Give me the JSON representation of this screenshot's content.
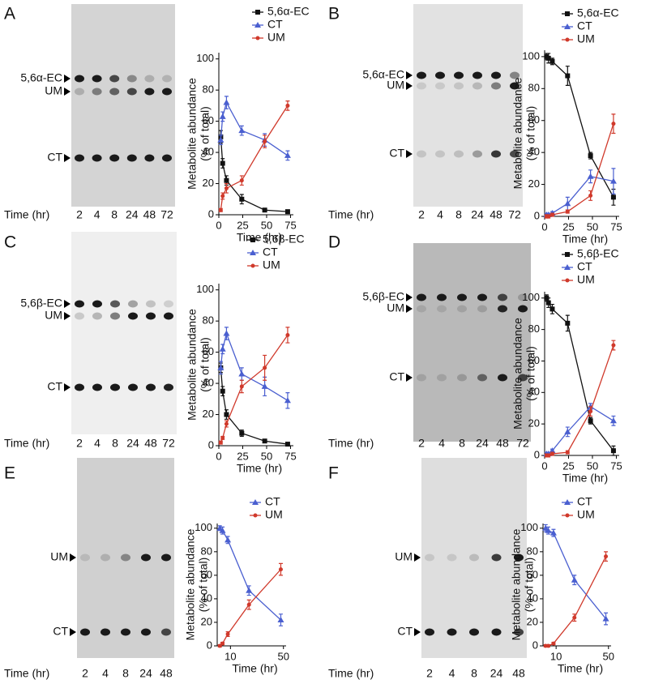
{
  "chart_data": [
    {
      "type": "line",
      "panel": "A",
      "gel": {
        "bands": [
          "5,6α-EC",
          "UM",
          "CT"
        ],
        "time_label": "Time (hr)"
      },
      "ylabel": [
        "Metabolite abundance",
        "(% of total)"
      ],
      "xlabel": "Time (hr)",
      "x": [
        2,
        4,
        8,
        24,
        48,
        72
      ],
      "xlim": [
        0,
        78
      ],
      "xticks": [
        0,
        25,
        50,
        75
      ],
      "ylim": [
        0,
        104
      ],
      "yticks": [
        0,
        20,
        40,
        60,
        80,
        100
      ],
      "series": [
        {
          "name": "5,6α-EC",
          "color": "#111111",
          "marker": "square",
          "values": [
            50,
            33,
            22,
            10,
            3,
            2
          ],
          "errors": [
            4,
            3,
            3,
            3,
            1,
            1
          ]
        },
        {
          "name": "CT",
          "color": "#4a5fd0",
          "marker": "triangle",
          "values": [
            48,
            63,
            72,
            54,
            48,
            38
          ],
          "errors": [
            3,
            3,
            4,
            3,
            4,
            3
          ]
        },
        {
          "name": "UM",
          "color": "#d0392b",
          "marker": "dot",
          "values": [
            3,
            12,
            17,
            22,
            47,
            70
          ],
          "errors": [
            1,
            2,
            3,
            3,
            4,
            3
          ]
        }
      ]
    },
    {
      "type": "line",
      "panel": "B",
      "gel": {
        "bands": [
          "5,6α-EC",
          "UM",
          "CT"
        ],
        "time_label": "Time (hr)"
      },
      "ylabel": [
        "Metabolite abundance",
        "(% of total)"
      ],
      "xlabel": "Time (hr)",
      "x": [
        2,
        4,
        8,
        24,
        48,
        72
      ],
      "xlim": [
        0,
        78
      ],
      "xticks": [
        0,
        25,
        50,
        75
      ],
      "ylim": [
        0,
        104
      ],
      "yticks": [
        0,
        20,
        40,
        60,
        80,
        100
      ],
      "series": [
        {
          "name": "5,6α-EC",
          "color": "#111111",
          "marker": "square",
          "values": [
            100,
            99,
            97,
            88,
            38,
            12
          ],
          "errors": [
            2,
            3,
            2,
            6,
            2,
            5
          ]
        },
        {
          "name": "CT",
          "color": "#4a5fd0",
          "marker": "triangle",
          "values": [
            1,
            1,
            2,
            8,
            25,
            22
          ],
          "errors": [
            1,
            1,
            1,
            4,
            4,
            8
          ]
        },
        {
          "name": "UM",
          "color": "#d0392b",
          "marker": "dot",
          "values": [
            0,
            0,
            1,
            3,
            13,
            58
          ],
          "errors": [
            1,
            1,
            1,
            1,
            3,
            6
          ]
        }
      ]
    },
    {
      "type": "line",
      "panel": "C",
      "gel": {
        "bands": [
          "5,6β-EC",
          "UM",
          "CT"
        ],
        "time_label": "Time (hr)"
      },
      "ylabel": [
        "Metabolite abundance",
        "(% of total)"
      ],
      "xlabel": "Time (hr)",
      "x": [
        2,
        4,
        8,
        24,
        48,
        72
      ],
      "xlim": [
        0,
        78
      ],
      "xticks": [
        0,
        25,
        50,
        75
      ],
      "ylim": [
        0,
        104
      ],
      "yticks": [
        0,
        20,
        40,
        60,
        80,
        100
      ],
      "series": [
        {
          "name": "5,6β-EC",
          "color": "#111111",
          "marker": "square",
          "values": [
            50,
            35,
            20,
            8,
            3,
            1
          ],
          "errors": [
            3,
            3,
            3,
            2,
            1,
            1
          ]
        },
        {
          "name": "CT",
          "color": "#4a5fd0",
          "marker": "triangle",
          "values": [
            50,
            62,
            72,
            46,
            38,
            29
          ],
          "errors": [
            4,
            3,
            4,
            4,
            6,
            5
          ]
        },
        {
          "name": "UM",
          "color": "#d0392b",
          "marker": "dot",
          "values": [
            2,
            5,
            14,
            38,
            50,
            71
          ],
          "errors": [
            1,
            1,
            2,
            4,
            8,
            5
          ]
        }
      ]
    },
    {
      "type": "line",
      "panel": "D",
      "gel": {
        "bands": [
          "5,6β-EC",
          "UM",
          "CT"
        ],
        "time_label": "Time (hr)"
      },
      "ylabel": [
        "Metabolite abundance",
        "(% of total)"
      ],
      "xlabel": "Time (hr)",
      "x": [
        2,
        4,
        8,
        24,
        48,
        72
      ],
      "xlim": [
        0,
        78
      ],
      "xticks": [
        0,
        25,
        50,
        75
      ],
      "ylim": [
        0,
        104
      ],
      "yticks": [
        0,
        20,
        40,
        60,
        80,
        100
      ],
      "series": [
        {
          "name": "5,6β-EC",
          "color": "#111111",
          "marker": "square",
          "values": [
            100,
            97,
            93,
            84,
            22,
            3
          ],
          "errors": [
            2,
            3,
            3,
            5,
            2,
            3
          ]
        },
        {
          "name": "CT",
          "color": "#4a5fd0",
          "marker": "triangle",
          "values": [
            1,
            1,
            3,
            15,
            31,
            22
          ],
          "errors": [
            1,
            1,
            1,
            3,
            2,
            3
          ]
        },
        {
          "name": "UM",
          "color": "#d0392b",
          "marker": "dot",
          "values": [
            0,
            0,
            1,
            2,
            28,
            70
          ],
          "errors": [
            1,
            1,
            1,
            1,
            3,
            3
          ]
        }
      ]
    },
    {
      "type": "line",
      "panel": "E",
      "gel": {
        "bands": [
          "UM",
          "CT"
        ],
        "time_label": "Time (hr)"
      },
      "ylabel": [
        "Metabolite abundance",
        "(% of total)"
      ],
      "xlabel": "Time (hr)",
      "x": [
        2,
        4,
        8,
        24,
        48
      ],
      "xlim": [
        0,
        52
      ],
      "xticks": [
        10,
        50
      ],
      "ylim": [
        0,
        104
      ],
      "yticks": [
        0,
        20,
        40,
        60,
        80,
        100
      ],
      "series": [
        {
          "name": "CT",
          "color": "#4a5fd0",
          "marker": "triangle",
          "values": [
            100,
            98,
            90,
            47,
            22
          ],
          "errors": [
            2,
            3,
            3,
            4,
            5
          ]
        },
        {
          "name": "UM",
          "color": "#d0392b",
          "marker": "dot",
          "values": [
            0,
            2,
            10,
            35,
            65
          ],
          "errors": [
            1,
            1,
            2,
            4,
            5
          ]
        }
      ]
    },
    {
      "type": "line",
      "panel": "F",
      "gel": {
        "bands": [
          "UM",
          "CT"
        ],
        "time_label": "Time (hr)"
      },
      "ylabel": [
        "Metabolite abundance",
        "(% of total)"
      ],
      "xlabel": "Time (hr)",
      "x": [
        2,
        4,
        8,
        24,
        48
      ],
      "xlim": [
        0,
        52
      ],
      "xticks": [
        10,
        50
      ],
      "ylim": [
        0,
        104
      ],
      "yticks": [
        0,
        20,
        40,
        60,
        80,
        100
      ],
      "series": [
        {
          "name": "CT",
          "color": "#4a5fd0",
          "marker": "triangle",
          "values": [
            100,
            98,
            96,
            56,
            23
          ],
          "errors": [
            3,
            3,
            3,
            4,
            5
          ]
        },
        {
          "name": "UM",
          "color": "#d0392b",
          "marker": "dot",
          "values": [
            0,
            0,
            2,
            24,
            76
          ],
          "errors": [
            1,
            1,
            1,
            3,
            4
          ]
        }
      ]
    }
  ]
}
